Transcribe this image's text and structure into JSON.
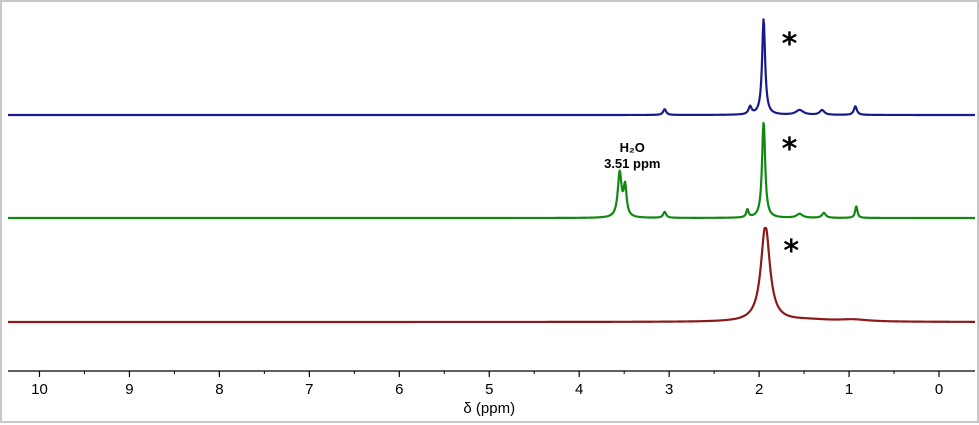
{
  "chart_data": {
    "type": "line",
    "xlabel": "δ (ppm)",
    "xlim": [
      10.35,
      -0.4
    ],
    "xticks": [
      10,
      9,
      8,
      7,
      6,
      5,
      4,
      3,
      2,
      1,
      0
    ],
    "colors": [
      "#1a1a8c",
      "#118811",
      "#8b1a1a"
    ],
    "series": [
      {
        "color": "#1a1a8c",
        "baseline": 0,
        "peaks": [
          {
            "x": 1.95,
            "height": 1.0,
            "width": 0.02,
            "clipped": true,
            "marker": "*"
          },
          {
            "x": 3.05,
            "height": 0.06,
            "width": 0.02
          },
          {
            "x": 2.1,
            "height": 0.08,
            "width": 0.02
          },
          {
            "x": 1.55,
            "height": 0.05,
            "width": 0.05
          },
          {
            "x": 1.3,
            "height": 0.05,
            "width": 0.03
          },
          {
            "x": 0.93,
            "height": 0.09,
            "width": 0.02
          }
        ]
      },
      {
        "color": "#118811",
        "baseline": 0,
        "peaks": [
          {
            "x": 1.95,
            "height": 1.0,
            "width": 0.02,
            "clipped": true,
            "marker": "*"
          },
          {
            "x": 3.55,
            "height": 0.45,
            "width": 0.025
          },
          {
            "x": 3.49,
            "height": 0.3,
            "width": 0.02
          },
          {
            "x": 3.05,
            "height": 0.06,
            "width": 0.02
          },
          {
            "x": 2.13,
            "height": 0.08,
            "width": 0.015
          },
          {
            "x": 1.55,
            "height": 0.04,
            "width": 0.04
          },
          {
            "x": 1.28,
            "height": 0.05,
            "width": 0.025
          },
          {
            "x": 0.92,
            "height": 0.12,
            "width": 0.015
          }
        ],
        "annotation": {
          "x": 3.51,
          "line1": "H₂O",
          "line2": "3.51 ppm"
        }
      },
      {
        "color": "#8b1a1a",
        "baseline": 0,
        "peaks": [
          {
            "x": 1.93,
            "height": 1.0,
            "width": 0.06,
            "clipped": true,
            "marker": "*"
          },
          {
            "x": 1.45,
            "height": 0.02,
            "width": 0.3
          },
          {
            "x": 0.95,
            "height": 0.02,
            "width": 0.2
          }
        ]
      }
    ],
    "star_label": "*",
    "grid": false
  }
}
